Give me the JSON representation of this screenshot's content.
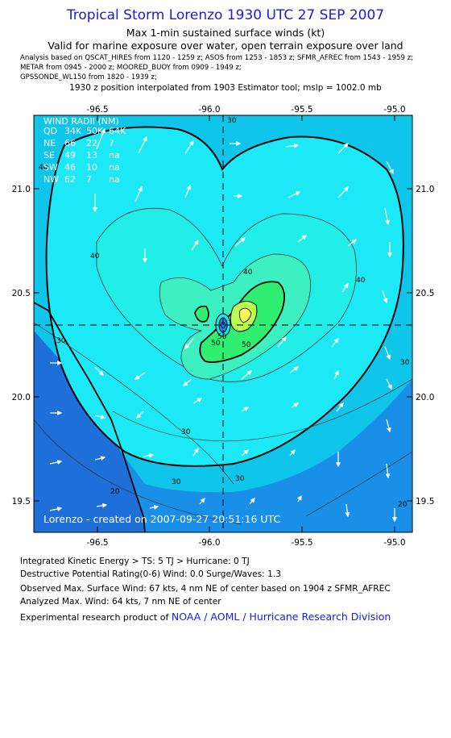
{
  "header": {
    "title": "Tropical Storm Lorenzo 1930 UTC 27 SEP 2007",
    "subtitle1": "Max 1-min sustained surface winds (kt)",
    "subtitle2": "Valid for marine exposure over water, open terrain exposure over land",
    "analysis_line1": "Analysis based on  QSCAT_HIRES from 1120 - 1259 z;  ASOS from 1253 - 1853 z;  SFMR_AFREC from 1543 - 1959 z;",
    "analysis_line2": "METAR from 0945 - 2000 z;  MOORED_BUOY from 0909 - 1949 z;",
    "analysis_line3": "GPSSONDE_WL150 from 1820 - 1939 z;",
    "interp_line": "1930 z position interpolated from 1903 Estimator tool; mslp = 1002.0 mb"
  },
  "map": {
    "lon_ticks": [
      "-96.5",
      "-96.0",
      "-95.5",
      "-95.0"
    ],
    "lat_ticks": [
      "21.0",
      "20.5",
      "20.0",
      "19.5"
    ],
    "contour_labels": [
      "30",
      "40",
      "40",
      "40",
      "50",
      "50",
      "50",
      "30",
      "30",
      "30",
      "30",
      "30",
      "20",
      "20",
      "40"
    ],
    "center_lon": -96.05,
    "center_lat": 20.35,
    "credit": "Lorenzo  -  created on 2007-09-27 20:51:16 UTC",
    "colors": {
      "land": "#1f6fd8",
      "ocean_outer": "#1a8fe8",
      "c30": "#0fc5ea",
      "c40": "#1de9f6",
      "c50": "#3df0c2",
      "c60": "#30ee70",
      "c64": "#d4ff40"
    }
  },
  "wind_radii": {
    "title": "WIND RADII (NM)",
    "header": [
      "QD",
      "34K",
      "50K",
      "64K"
    ],
    "rows": [
      [
        "NE",
        "66",
        "22",
        "7"
      ],
      [
        "SE",
        "49",
        "13",
        "na"
      ],
      [
        "SW",
        "46",
        "10",
        "na"
      ],
      [
        "NW",
        "62",
        "7",
        "na"
      ]
    ]
  },
  "footer": {
    "ike": "Integrated Kinetic Energy > TS: 5 TJ   > Hurricane: 0 TJ",
    "dpr": "Destructive Potential Rating(0-6)   Wind: 0.0 Surge/Waves: 1.3",
    "observed": "Observed Max. Surface Wind: 67 kts, 4 nm NE of center based on 1904 z SFMR_AFREC",
    "analyzed": "Analyzed Max. Wind: 64 kts, 7 nm NE of center",
    "credit_prefix": "Experimental research product of ",
    "credit_org": "NOAA / AOML / Hurricane Research Division"
  }
}
